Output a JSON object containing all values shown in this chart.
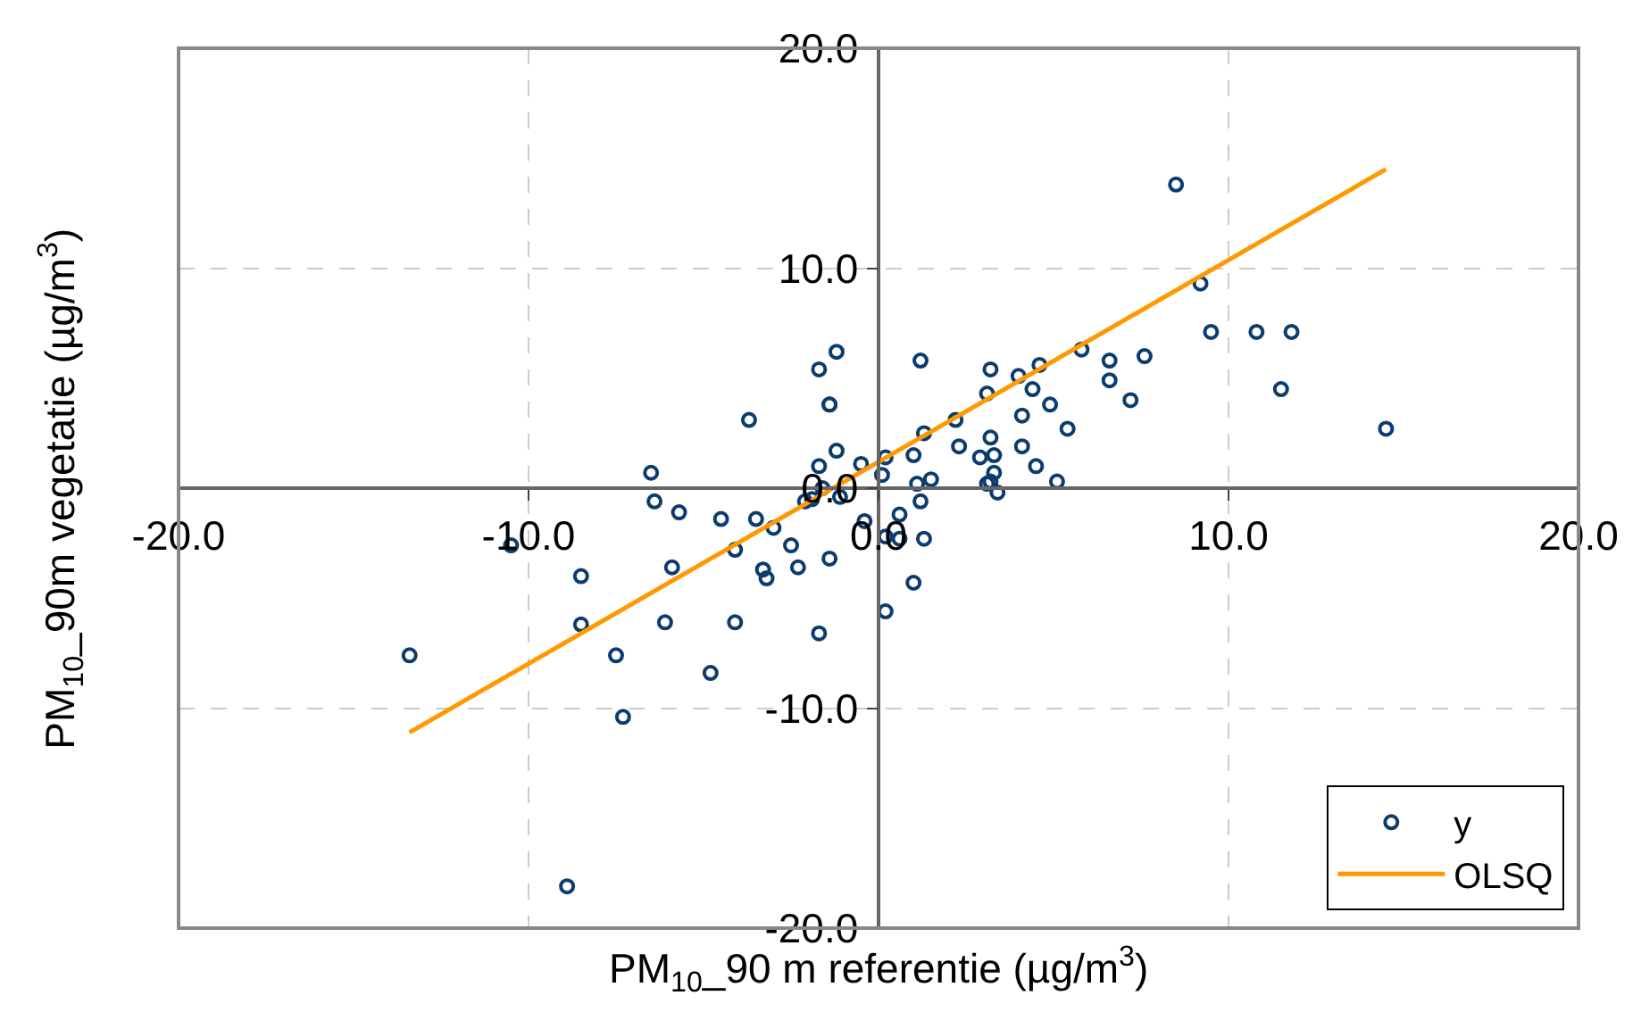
{
  "chart_data": {
    "type": "scatter",
    "xlabel": "PM$_{10}$_90 m referentie (µg/m$^{3}$)",
    "ylabel": "PM$_{10}$_90m vegetatie (µg/m$^{3}$)",
    "xlim": [
      -20,
      20
    ],
    "ylim": [
      -20,
      20
    ],
    "xticks": [
      {
        "value": -20,
        "label": "-20.0"
      },
      {
        "value": -10,
        "label": "-10.0"
      },
      {
        "value": 0,
        "label": "0.0"
      },
      {
        "value": 10,
        "label": "10.0"
      },
      {
        "value": 20,
        "label": "20.0"
      }
    ],
    "yticks": [
      {
        "value": -20,
        "label": "-20.0"
      },
      {
        "value": -10,
        "label": "-10.0"
      },
      {
        "value": 0,
        "label": "0.0"
      },
      {
        "value": 10,
        "label": "10.0"
      },
      {
        "value": 20,
        "label": "20.0"
      }
    ],
    "grid": true,
    "legend": "bottom right",
    "series": [
      {
        "name": "y",
        "marker": "circle",
        "color": "#0b3c6e",
        "x": [
          -13.4,
          -10.5,
          -8.5,
          -8.5,
          -7.5,
          -7.3,
          -8.9,
          -6.5,
          -6.4,
          -5.7,
          -5.9,
          -6.1,
          -4.8,
          -4.5,
          -4.1,
          -4.1,
          -3.7,
          -3.5,
          -3.3,
          -3.2,
          -3.0,
          -2.5,
          -2.3,
          -2.1,
          -1.9,
          -1.7,
          -1.6,
          -1.7,
          -1.4,
          -1.4,
          -1.2,
          -1.2,
          -1.1,
          -1.7,
          -1.4,
          -0.5,
          -0.4,
          0.1,
          0.2,
          0.2,
          0.2,
          0.6,
          0.6,
          1.3,
          1.0,
          1.0,
          1.1,
          1.5,
          1.2,
          1.3,
          1.2,
          2.2,
          2.3,
          3.1,
          3.2,
          3.2,
          2.9,
          3.3,
          3.3,
          3.1,
          3.2,
          3.4,
          4.0,
          4.1,
          4.4,
          4.6,
          4.9,
          4.1,
          4.5,
          5.1,
          5.4,
          5.8,
          6.6,
          6.6,
          7.2,
          7.6,
          8.5,
          9.2,
          9.5,
          10.8,
          11.8,
          11.5,
          14.5
        ],
        "values": [
          -7.6,
          -2.6,
          -6.2,
          -4.0,
          -7.6,
          -10.4,
          -18.1,
          0.7,
          -0.6,
          -1.1,
          -3.6,
          -6.1,
          -8.4,
          -1.4,
          -2.8,
          -6.1,
          3.1,
          -1.4,
          -3.7,
          -4.1,
          -1.8,
          -2.6,
          -3.6,
          -0.6,
          -0.5,
          1.0,
          0.0,
          5.4,
          3.8,
          3.8,
          6.2,
          1.7,
          -0.4,
          -6.6,
          -3.2,
          1.1,
          -1.5,
          0.6,
          -2.2,
          -5.6,
          1.4,
          -1.2,
          -2.3,
          -2.3,
          -4.3,
          1.5,
          0.2,
          0.4,
          -0.6,
          2.5,
          5.8,
          3.1,
          1.9,
          4.3,
          5.4,
          2.3,
          1.4,
          1.5,
          0.7,
          0.2,
          0.3,
          -0.2,
          5.1,
          3.3,
          4.5,
          5.6,
          3.8,
          1.9,
          1.0,
          0.3,
          2.7,
          6.3,
          5.8,
          4.9,
          4.0,
          6.0,
          13.8,
          9.3,
          7.1,
          7.1,
          7.1,
          4.5,
          2.7
        ]
      },
      {
        "name": "OLSQ",
        "type": "line",
        "marker": "none",
        "line_style": "solid",
        "color": "#ff9900",
        "x": [
          -13.4,
          14.5
        ],
        "values": [
          -11.1,
          14.5
        ]
      }
    ]
  }
}
